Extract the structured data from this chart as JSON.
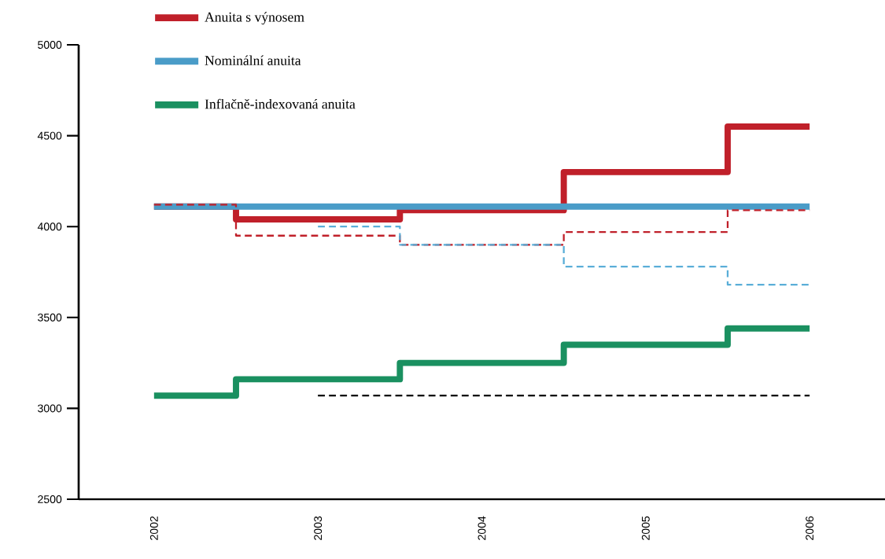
{
  "chart_data": {
    "type": "step",
    "categories": [
      "2002",
      "2003",
      "2004",
      "2005",
      "2006"
    ],
    "series": [
      {
        "name": "Anuita s výnosem",
        "color": "#c0202a",
        "line_style": "solid",
        "values": [
          4110,
          4040,
          4090,
          4300,
          4550
        ]
      },
      {
        "name": "Nominální anuita",
        "color": "#4a9cc8",
        "line_style": "solid",
        "values": [
          4110,
          4110,
          4110,
          4110,
          4110
        ]
      },
      {
        "name": "Inflačně-indexovaná anuita",
        "color": "#1a9060",
        "line_style": "solid",
        "values": [
          3070,
          3160,
          3250,
          3350,
          3440
        ]
      },
      {
        "color": "#c0202a",
        "line_style": "dashed",
        "values": [
          4120,
          3950,
          3900,
          3970,
          4090
        ]
      },
      {
        "color": "#5aaed8",
        "line_style": "dashed",
        "values": [
          null,
          4000,
          3900,
          3780,
          3680
        ]
      },
      {
        "color": "#000000",
        "line_style": "dashed",
        "values": [
          null,
          3070,
          3070,
          3070,
          3070
        ]
      }
    ],
    "ylim": [
      2500,
      5000
    ],
    "yticks": [
      2500,
      3000,
      3500,
      4000,
      4500,
      5000
    ],
    "legend": "top"
  }
}
